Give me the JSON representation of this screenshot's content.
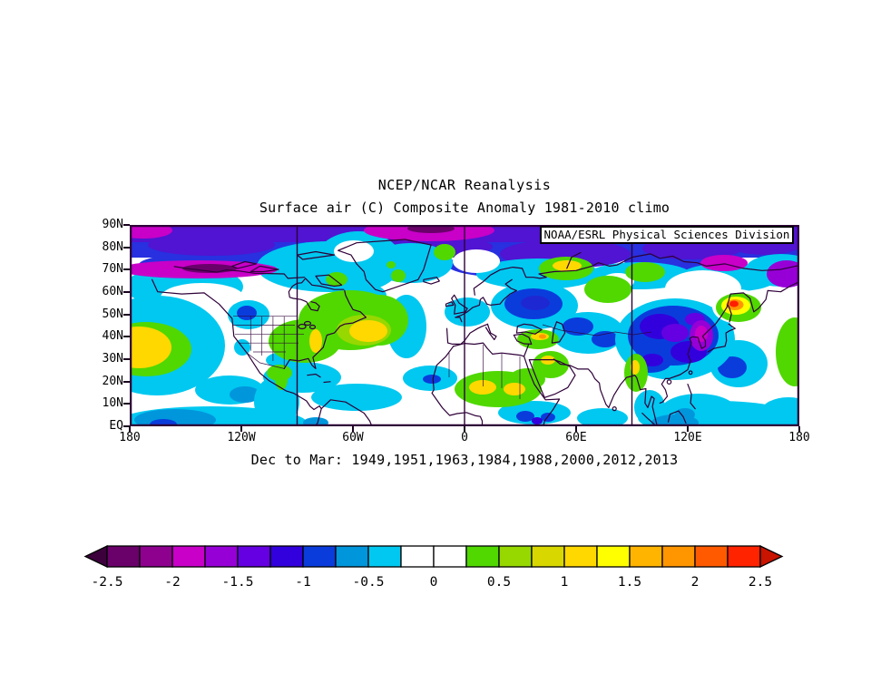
{
  "header": {
    "title": "NCEP/NCAR Reanalysis",
    "subtitle": "Surface air (C) Composite Anomaly 1981-2010 climo"
  },
  "map": {
    "attribution": "NOAA/ESRL Physical Sciences Division"
  },
  "caption": "Dec to Mar: 1949,1951,1963,1984,1988,2000,2012,2013",
  "axes": {
    "lat_labels": [
      "90N",
      "80N",
      "70N",
      "60N",
      "50N",
      "40N",
      "30N",
      "20N",
      "10N",
      "EQ"
    ],
    "lon_labels": [
      "180",
      "120W",
      "60W",
      "0",
      "60E",
      "120E",
      "180"
    ]
  },
  "colorbar": {
    "tick_labels": [
      "-2.5",
      "-2",
      "-1.5",
      "-1",
      "-0.5",
      "0",
      "0.5",
      "1",
      "1.5",
      "2",
      "2.5"
    ],
    "cell_colors": [
      "#6A006A",
      "#8E008E",
      "#C800C8",
      "#9600D7",
      "#6400E1",
      "#3200DC",
      "#0A3CDC",
      "#0096DC",
      "#00C8F0",
      "#FFFFFF",
      "#FFFFFF",
      "#50D800",
      "#96D800",
      "#D8D800",
      "#FFD800",
      "#FFFF00",
      "#FFB400",
      "#FF9600",
      "#FF5A00",
      "#FF2300"
    ],
    "left_arrow_color": "#3C003C",
    "right_arrow_color": "#C81400"
  },
  "palette": {
    "polarBlue": "#2830E0",
    "violet": "#5014D2",
    "magenta": "#C800C8",
    "darkPurple": "#6A006A",
    "purple": "#9600D7",
    "blueViolet": "#6400E1",
    "deepBlue": "#3200DC",
    "navy": "#1E28D2",
    "blue": "#0A3CDC",
    "skyBlue": "#0096DC",
    "cyan": "#00C8F0",
    "white": "#FFFFFF",
    "green": "#50D800",
    "yGreen": "#96D800",
    "yellow": "#FFD800",
    "brightYellow": "#FFFF00",
    "orange": "#FF9600",
    "red": "#FF1E00",
    "coast": "#2E0038"
  },
  "chart_data": {
    "type": "heatmap",
    "title": "NCEP/NCAR Reanalysis",
    "variable": "Surface air (C) Composite Anomaly",
    "climatology": "1981-2010 climo",
    "season": "Dec to Mar",
    "composite_years": [
      1949,
      1951,
      1963,
      1984,
      1988,
      2000,
      2012,
      2013
    ],
    "units": "C",
    "projection": "equirectangular",
    "lat_range": [
      "EQ",
      "90N"
    ],
    "lon_range": [
      "180W",
      "180E"
    ],
    "grid_meridians": [
      "90W",
      "0",
      "90E"
    ],
    "contour_interval": 0.25,
    "colorbar_range": [
      -2.5,
      2.5
    ],
    "colorbar_tick_values": [
      -2.5,
      -2,
      -1.5,
      -1,
      -0.5,
      0,
      0.5,
      1,
      1.5,
      2,
      2.5
    ],
    "legend_position": "bottom",
    "anomaly_centers": [
      {
        "region": "Arctic cap 75-90N",
        "value": -2.0
      },
      {
        "region": "Alaska north coast band",
        "value": -2.0
      },
      {
        "region": "North Pacific near 40N,175W",
        "value": 1.5
      },
      {
        "region": "Eastern North America / Great Lakes / Quebec",
        "value": 1.5
      },
      {
        "region": "Northern Rockies",
        "value": -1.0
      },
      {
        "region": "Gulf of Mexico / Caribbean",
        "value": -0.5
      },
      {
        "region": "Greenland interior",
        "value": -0.25
      },
      {
        "region": "Western Russia near 60N,45E",
        "value": -1.25
      },
      {
        "region": "Novaya Zemlya area 70N,55E",
        "value": 1.5
      },
      {
        "region": "Sahara",
        "value": 1.5
      },
      {
        "region": "Turkey / Caucasus",
        "value": 1.75
      },
      {
        "region": "Middle East / Iran",
        "value": 1.25
      },
      {
        "region": "Northwest India / Pakistan",
        "value": 1.5
      },
      {
        "region": "Mongolia / Central Asia",
        "value": -1.75
      },
      {
        "region": "Sea of Okhotsk / Sakhalin",
        "value": 2.5
      },
      {
        "region": "Tropical Indo-Pacific",
        "value": -0.75
      },
      {
        "region": "Equatorial Africa",
        "value": -1.0
      }
    ]
  }
}
